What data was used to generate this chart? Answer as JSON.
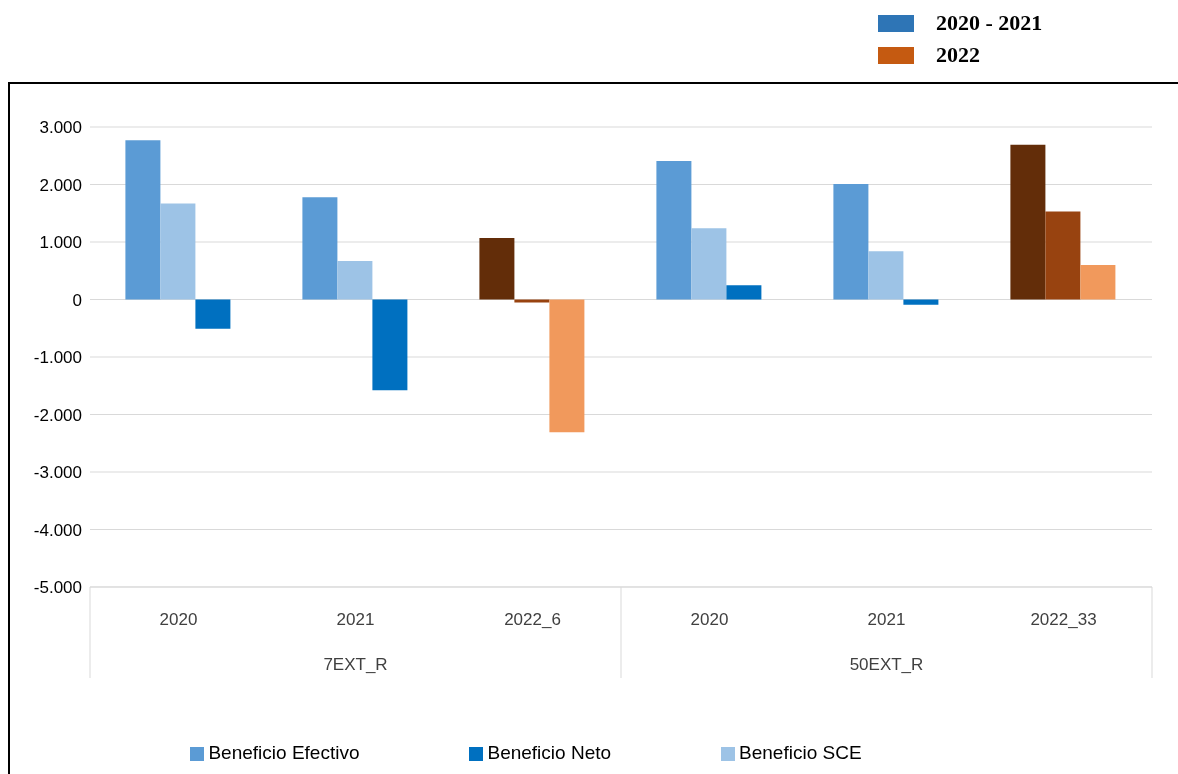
{
  "chart_data": {
    "type": "bar",
    "categories": [
      "2020",
      "2021",
      "2022_6",
      "2020",
      "2021",
      "2022_33"
    ],
    "series": [
      {
        "name": "Beneficio Efectivo",
        "color": "#5b9bd5",
        "colors": [
          "#5b9bd5",
          "#5b9bd5",
          "#632d09",
          "#5b9bd5",
          "#5b9bd5",
          "#632d09"
        ],
        "values": [
          2770,
          1780,
          1070,
          2410,
          2010,
          2690
        ]
      },
      {
        "name": "Beneficio SCE",
        "color": "#9dc3e6",
        "colors": [
          "#9dc3e6",
          "#9dc3e6",
          "#984310",
          "#9dc3e6",
          "#9dc3e6",
          "#984310"
        ],
        "values": [
          1670,
          670,
          -50,
          1240,
          840,
          1530
        ]
      },
      {
        "name": "Beneficio Neto",
        "color": "#0070c0",
        "colors": [
          "#0070c0",
          "#0070c0",
          "#f1995c",
          "#0070c0",
          "#0070c0",
          "#f1995c"
        ],
        "values": [
          -510,
          -1580,
          -2310,
          250,
          -90,
          600
        ]
      }
    ],
    "ylim": [
      -5000,
      3000
    ],
    "yticks": [
      {
        "value": -5000,
        "label": "-5.000"
      },
      {
        "value": -4000,
        "label": "-4.000"
      },
      {
        "value": -3000,
        "label": "-3.000"
      },
      {
        "value": -2000,
        "label": "-2.000"
      },
      {
        "value": -1000,
        "label": "-1.000"
      },
      0,
      {
        "value": 1000,
        "label": "1.000"
      },
      {
        "value": 2000,
        "label": "2.000"
      },
      {
        "value": 3000,
        "label": "3.000"
      }
    ],
    "grid": "y",
    "legend": "bottom",
    "annotations": [
      "7EXT_R",
      "50EXT_R",
      "2020 - 2021",
      "2022"
    ]
  }
}
